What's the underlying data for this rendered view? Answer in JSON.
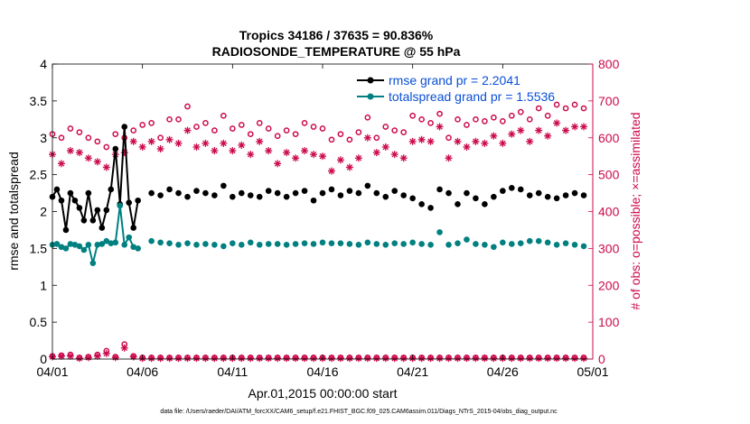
{
  "chart_data": {
    "type": "line",
    "title": "Tropics 34186 / 37635 = 90.836%",
    "subtitle": "RADIOSONDE_TEMPERATURE @ 55 hPa",
    "xlabel": "Apr.01,2015 00:00:00 start",
    "ylabel_left": "rmse and totalspread",
    "ylabel_right": "# of obs: o=possible; ×=assimilated",
    "footnote": "data file: /Users/raeder/DAI/ATM_forcXX/CAM6_setup/f.e21.FHIST_BGC.f09_025.CAM6assim.011/Diags_NTrS_2015-04/obs_diag_output.nc",
    "xlim": [
      0,
      30
    ],
    "ylim_left": [
      0,
      4
    ],
    "ylim_right": [
      0,
      800
    ],
    "x_ticks": [
      0,
      5,
      10,
      15,
      20,
      25,
      30
    ],
    "x_tick_labels": [
      "04/01",
      "04/06",
      "04/11",
      "04/16",
      "04/21",
      "04/26",
      "05/01"
    ],
    "y_left_ticks": [
      0,
      0.5,
      1,
      1.5,
      2,
      2.5,
      3,
      3.5,
      4
    ],
    "y_left_tick_labels": [
      "0",
      "0.5",
      "1",
      "1.5",
      "2",
      "2.5",
      "3",
      "3.5",
      "4"
    ],
    "y_right_ticks": [
      0,
      100,
      200,
      300,
      400,
      500,
      600,
      700,
      800
    ],
    "y_right_tick_labels": [
      "0",
      "100",
      "200",
      "300",
      "400",
      "500",
      "600",
      "700",
      "800"
    ],
    "legend": {
      "position": "top-right",
      "entries": [
        "rmse grand pr = 2.2041",
        "totalspread grand pr = 1.5536"
      ]
    },
    "colors": {
      "rmse": "#000000",
      "totalspread": "#008080",
      "obs": "#cc0a4e",
      "legend_text": "#0a4fd6"
    },
    "series": [
      {
        "name": "rmse",
        "axis": "left",
        "style": "line-markers",
        "x": [
          0,
          0.25,
          0.5,
          0.75,
          1,
          1.25,
          1.5,
          1.75,
          2,
          2.25,
          2.5,
          2.75,
          3,
          3.25,
          3.5,
          3.75,
          4,
          4.25,
          4.5,
          4.75,
          5,
          5.25
        ],
        "y": [
          2.2,
          2.3,
          2.15,
          1.75,
          2.25,
          2.15,
          2.05,
          1.88,
          2.25,
          1.88,
          2.02,
          1.78,
          2.02,
          2.3,
          2.85,
          2.1,
          3.15,
          2.12,
          1.78,
          2.15,
          null,
          null
        ]
      },
      {
        "name": "rmse_later",
        "axis": "left",
        "style": "markers",
        "x": [
          5.5,
          6,
          6.5,
          7,
          7.5,
          8,
          8.5,
          9,
          9.5,
          10,
          10.5,
          11,
          11.5,
          12,
          12.5,
          13,
          13.5,
          14,
          14.5,
          15,
          15.5,
          16,
          16.5,
          17,
          17.5,
          18,
          18.5,
          19,
          19.5,
          20,
          20.5,
          21,
          21.5,
          22,
          22.5,
          23,
          23.5,
          24,
          24.5,
          25,
          25.5,
          26,
          26.5,
          27,
          27.5,
          28,
          28.5,
          29,
          29.5
        ],
        "y": [
          2.25,
          2.22,
          2.3,
          2.25,
          2.2,
          2.28,
          2.25,
          2.22,
          2.35,
          2.2,
          2.25,
          2.22,
          2.2,
          2.28,
          2.25,
          2.2,
          2.25,
          2.28,
          2.15,
          2.25,
          2.3,
          2.22,
          2.28,
          2.25,
          2.35,
          2.25,
          2.2,
          2.28,
          2.22,
          2.18,
          2.1,
          2.05,
          2.3,
          2.25,
          2.1,
          2.25,
          2.18,
          2.1,
          2.2,
          2.28,
          2.32,
          2.3,
          2.22,
          2.25,
          2.2,
          2.18,
          2.22,
          2.25,
          2.22
        ]
      },
      {
        "name": "totalspread",
        "axis": "left",
        "style": "line-markers",
        "x": [
          0,
          0.25,
          0.5,
          0.75,
          1,
          1.25,
          1.5,
          1.75,
          2,
          2.25,
          2.5,
          2.75,
          3,
          3.25,
          3.5,
          3.75,
          4,
          4.25,
          4.5,
          4.75,
          5,
          5.25
        ],
        "y": [
          1.55,
          1.56,
          1.52,
          1.5,
          1.56,
          1.55,
          1.53,
          1.48,
          1.55,
          1.3,
          1.55,
          1.56,
          1.6,
          1.57,
          1.58,
          2.08,
          1.55,
          1.65,
          1.52,
          1.5,
          null,
          null
        ]
      },
      {
        "name": "totalspread_later",
        "axis": "left",
        "style": "markers",
        "x": [
          5.5,
          6,
          6.5,
          7,
          7.5,
          8,
          8.5,
          9,
          9.5,
          10,
          10.5,
          11,
          11.5,
          12,
          12.5,
          13,
          13.5,
          14,
          14.5,
          15,
          15.5,
          16,
          16.5,
          17,
          17.5,
          18,
          18.5,
          19,
          19.5,
          20,
          20.5,
          21,
          21.5,
          22,
          22.5,
          23,
          23.5,
          24,
          24.5,
          25,
          25.5,
          26,
          26.5,
          27,
          27.5,
          28,
          28.5,
          29,
          29.5
        ],
        "y": [
          1.6,
          1.58,
          1.57,
          1.55,
          1.57,
          1.55,
          1.56,
          1.55,
          1.53,
          1.57,
          1.55,
          1.58,
          1.55,
          1.56,
          1.56,
          1.55,
          1.56,
          1.57,
          1.56,
          1.58,
          1.57,
          1.57,
          1.56,
          1.55,
          1.58,
          1.56,
          1.55,
          1.57,
          1.56,
          1.58,
          1.56,
          1.55,
          1.72,
          1.55,
          1.57,
          1.62,
          1.56,
          1.55,
          1.52,
          1.58,
          1.56,
          1.57,
          1.6,
          1.6,
          1.58,
          1.55,
          1.57,
          1.55,
          1.53
        ]
      },
      {
        "name": "obs_possible",
        "axis": "right",
        "style": "circle",
        "x": [
          0,
          0.5,
          1,
          1.5,
          2,
          2.5,
          3,
          3.5,
          4,
          4.5,
          5,
          5.5,
          6,
          6.5,
          7,
          7.5,
          8,
          8.5,
          9,
          9.5,
          10,
          10.5,
          11,
          11.5,
          12,
          12.5,
          13,
          13.5,
          14,
          14.5,
          15,
          15.5,
          16,
          16.5,
          17,
          17.5,
          18,
          18.5,
          19,
          19.5,
          20,
          20.5,
          21,
          21.5,
          22,
          22.5,
          23,
          23.5,
          24,
          24.5,
          25,
          25.5,
          26,
          26.5,
          27,
          27.5,
          28,
          28.5,
          29,
          29.5
        ],
        "y": [
          610,
          600,
          625,
          615,
          600,
          590,
          575,
          610,
          600,
          620,
          635,
          640,
          600,
          650,
          650,
          685,
          630,
          640,
          620,
          660,
          625,
          635,
          610,
          640,
          625,
          605,
          620,
          610,
          640,
          630,
          625,
          595,
          610,
          595,
          615,
          655,
          600,
          630,
          620,
          615,
          660,
          650,
          640,
          665,
          600,
          650,
          635,
          650,
          645,
          655,
          645,
          660,
          670,
          650,
          680,
          660,
          690,
          680,
          690,
          680
        ]
      },
      {
        "name": "obs_assimilated",
        "axis": "right",
        "style": "star",
        "x": [
          0,
          0.5,
          1,
          1.5,
          2,
          2.5,
          3,
          3.5,
          4,
          4.5,
          5,
          5.5,
          6,
          6.5,
          7,
          7.5,
          8,
          8.5,
          9,
          9.5,
          10,
          10.5,
          11,
          11.5,
          12,
          12.5,
          13,
          13.5,
          14,
          14.5,
          15,
          15.5,
          16,
          16.5,
          17,
          17.5,
          18,
          18.5,
          19,
          19.5,
          20,
          20.5,
          21,
          21.5,
          22,
          22.5,
          23,
          23.5,
          24,
          24.5,
          25,
          25.5,
          26,
          26.5,
          27,
          27.5,
          28,
          28.5,
          29,
          29.5
        ],
        "y": [
          555,
          530,
          565,
          560,
          545,
          535,
          520,
          555,
          560,
          590,
          575,
          590,
          570,
          595,
          585,
          620,
          575,
          585,
          565,
          585,
          565,
          580,
          555,
          590,
          565,
          530,
          560,
          545,
          565,
          555,
          550,
          510,
          540,
          520,
          545,
          600,
          560,
          575,
          555,
          545,
          590,
          595,
          590,
          630,
          545,
          590,
          575,
          590,
          585,
          605,
          585,
          610,
          620,
          590,
          620,
          605,
          640,
          620,
          630,
          630
        ]
      },
      {
        "name": "obs_possible_near_zero",
        "axis": "right",
        "style": "circle",
        "x": [
          0,
          0.5,
          1,
          1.5,
          2,
          2.5,
          3,
          3.5,
          4,
          4.5,
          5,
          5.5,
          6,
          6.5,
          7,
          7.5,
          8,
          8.5,
          9,
          9.5,
          10,
          10.5,
          11,
          11.5,
          12,
          12.5,
          13,
          13.5,
          14,
          14.5,
          15,
          15.5,
          16,
          16.5,
          17,
          17.5,
          18,
          18.5,
          19,
          19.5,
          20,
          20.5,
          21,
          21.5,
          22,
          22.5,
          23,
          23.5,
          24,
          24.5,
          25,
          25.5,
          26,
          26.5,
          27,
          27.5,
          28,
          28.5,
          29,
          29.5
        ],
        "y": [
          8,
          10,
          12,
          4,
          6,
          12,
          22,
          6,
          40,
          8,
          4,
          4,
          4,
          4,
          4,
          4,
          4,
          4,
          4,
          4,
          4,
          4,
          4,
          4,
          4,
          4,
          4,
          4,
          4,
          4,
          4,
          4,
          4,
          4,
          4,
          4,
          4,
          4,
          4,
          4,
          4,
          4,
          4,
          4,
          4,
          4,
          4,
          4,
          4,
          4,
          4,
          4,
          4,
          4,
          4,
          4,
          4,
          4,
          4,
          4
        ]
      },
      {
        "name": "obs_assimilated_near_zero",
        "axis": "right",
        "style": "star",
        "x": [
          0,
          0.5,
          1,
          1.5,
          2,
          2.5,
          3,
          3.5,
          4,
          4.5,
          5,
          5.5,
          6,
          6.5,
          7,
          7.5,
          8,
          8.5,
          9,
          9.5,
          10,
          10.5,
          11,
          11.5,
          12,
          12.5,
          13,
          13.5,
          14,
          14.5,
          15,
          15.5,
          16,
          16.5,
          17,
          17.5,
          18,
          18.5,
          19,
          19.5,
          20,
          20.5,
          21,
          21.5,
          22,
          22.5,
          23,
          23.5,
          24,
          24.5,
          25,
          25.5,
          26,
          26.5,
          27,
          27.5,
          28,
          28.5,
          29,
          29.5
        ],
        "y": [
          6,
          8,
          8,
          2,
          4,
          8,
          15,
          4,
          30,
          6,
          2,
          2,
          2,
          2,
          2,
          2,
          2,
          2,
          2,
          2,
          2,
          2,
          2,
          2,
          2,
          2,
          2,
          2,
          2,
          2,
          2,
          2,
          2,
          2,
          2,
          2,
          2,
          2,
          2,
          2,
          2,
          2,
          2,
          2,
          2,
          2,
          2,
          2,
          2,
          2,
          2,
          2,
          2,
          2,
          2,
          2,
          2,
          2,
          2,
          2
        ]
      }
    ]
  }
}
